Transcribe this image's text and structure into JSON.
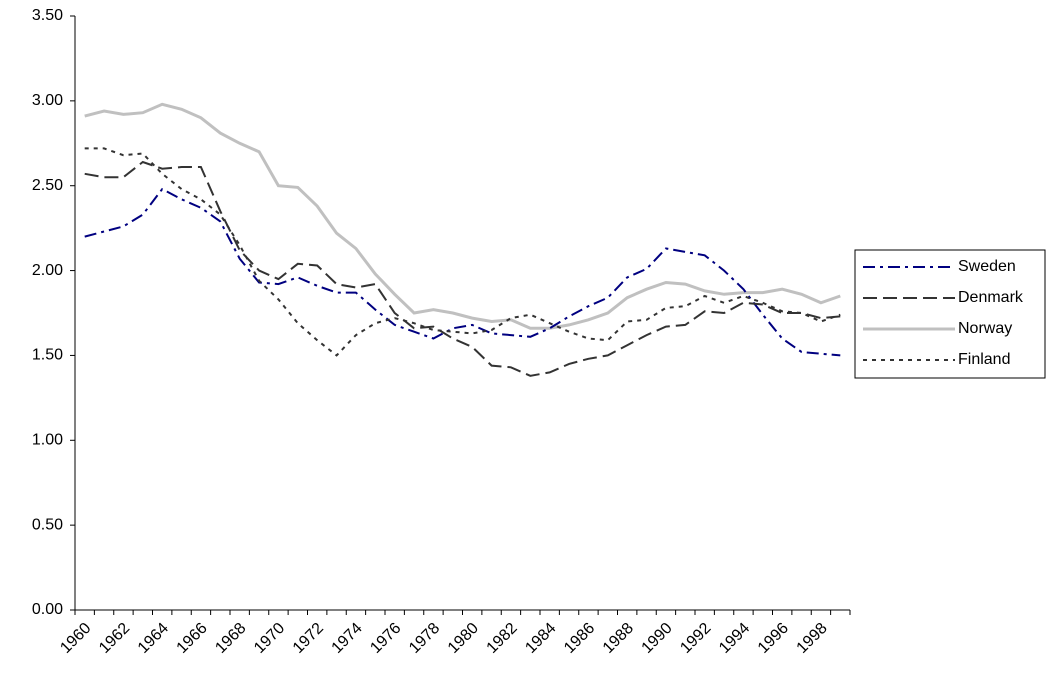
{
  "chart_data": {
    "type": "line",
    "categories": [
      "1960",
      null,
      "1962",
      null,
      "1964",
      null,
      "1966",
      null,
      "1968",
      null,
      "1970",
      null,
      "1972",
      null,
      "1974",
      null,
      "1976",
      null,
      "1978",
      null,
      "1980",
      null,
      "1982",
      null,
      "1984",
      null,
      "1986",
      null,
      "1988",
      null,
      "1990",
      null,
      "1992",
      null,
      "1994",
      null,
      "1996",
      null,
      "1998",
      null
    ],
    "series": [
      {
        "name": "Sweden",
        "color": "#000080",
        "values": [
          2.2,
          2.23,
          2.26,
          2.33,
          2.48,
          2.42,
          2.37,
          2.29,
          2.07,
          1.93,
          1.92,
          1.96,
          1.91,
          1.87,
          1.87,
          1.77,
          1.68,
          1.64,
          1.6,
          1.66,
          1.68,
          1.63,
          1.62,
          1.61,
          1.66,
          1.73,
          1.79,
          1.84,
          1.96,
          2.01,
          2.13,
          2.11,
          2.09,
          2.0,
          1.89,
          1.74,
          1.6,
          1.52,
          1.51,
          1.5
        ]
      },
      {
        "name": "Denmark",
        "color": "#333333",
        "values": [
          2.57,
          2.55,
          2.55,
          2.64,
          2.6,
          2.61,
          2.61,
          2.35,
          2.12,
          2.0,
          1.95,
          2.04,
          2.03,
          1.92,
          1.9,
          1.92,
          1.75,
          1.66,
          1.67,
          1.6,
          1.55,
          1.44,
          1.43,
          1.38,
          1.4,
          1.45,
          1.48,
          1.5,
          1.56,
          1.62,
          1.67,
          1.68,
          1.76,
          1.75,
          1.81,
          1.8,
          1.75,
          1.75,
          1.72,
          1.73
        ]
      },
      {
        "name": "Norway",
        "color": "#c0c0c0",
        "values": [
          2.91,
          2.94,
          2.92,
          2.93,
          2.98,
          2.95,
          2.9,
          2.81,
          2.75,
          2.7,
          2.5,
          2.49,
          2.38,
          2.22,
          2.13,
          1.98,
          1.86,
          1.75,
          1.77,
          1.75,
          1.72,
          1.7,
          1.71,
          1.66,
          1.66,
          1.68,
          1.71,
          1.75,
          1.84,
          1.89,
          1.93,
          1.92,
          1.88,
          1.86,
          1.87,
          1.87,
          1.89,
          1.86,
          1.81,
          1.85
        ]
      },
      {
        "name": "Finland",
        "color": "#333333",
        "values": [
          2.72,
          2.72,
          2.68,
          2.69,
          2.57,
          2.48,
          2.42,
          2.33,
          2.15,
          1.94,
          1.83,
          1.69,
          1.59,
          1.5,
          1.62,
          1.69,
          1.72,
          1.69,
          1.65,
          1.64,
          1.63,
          1.65,
          1.72,
          1.74,
          1.69,
          1.64,
          1.6,
          1.59,
          1.7,
          1.71,
          1.78,
          1.79,
          1.85,
          1.81,
          1.85,
          1.81,
          1.76,
          1.75,
          1.7,
          1.74
        ]
      }
    ],
    "ylim": [
      0,
      3.5
    ],
    "yticks": [
      {
        "value": 0,
        "label": "0.00"
      },
      {
        "value": 0.5,
        "label": "0.50"
      },
      {
        "value": 1,
        "label": "1.00"
      },
      {
        "value": 1.5,
        "label": "1.50"
      },
      {
        "value": 2,
        "label": "2.00"
      },
      {
        "value": 2.5,
        "label": "2.50"
      },
      {
        "value": 3,
        "label": "3.00"
      },
      {
        "value": 3.5,
        "label": "3.50"
      }
    ],
    "grid": false,
    "legend": "right"
  }
}
